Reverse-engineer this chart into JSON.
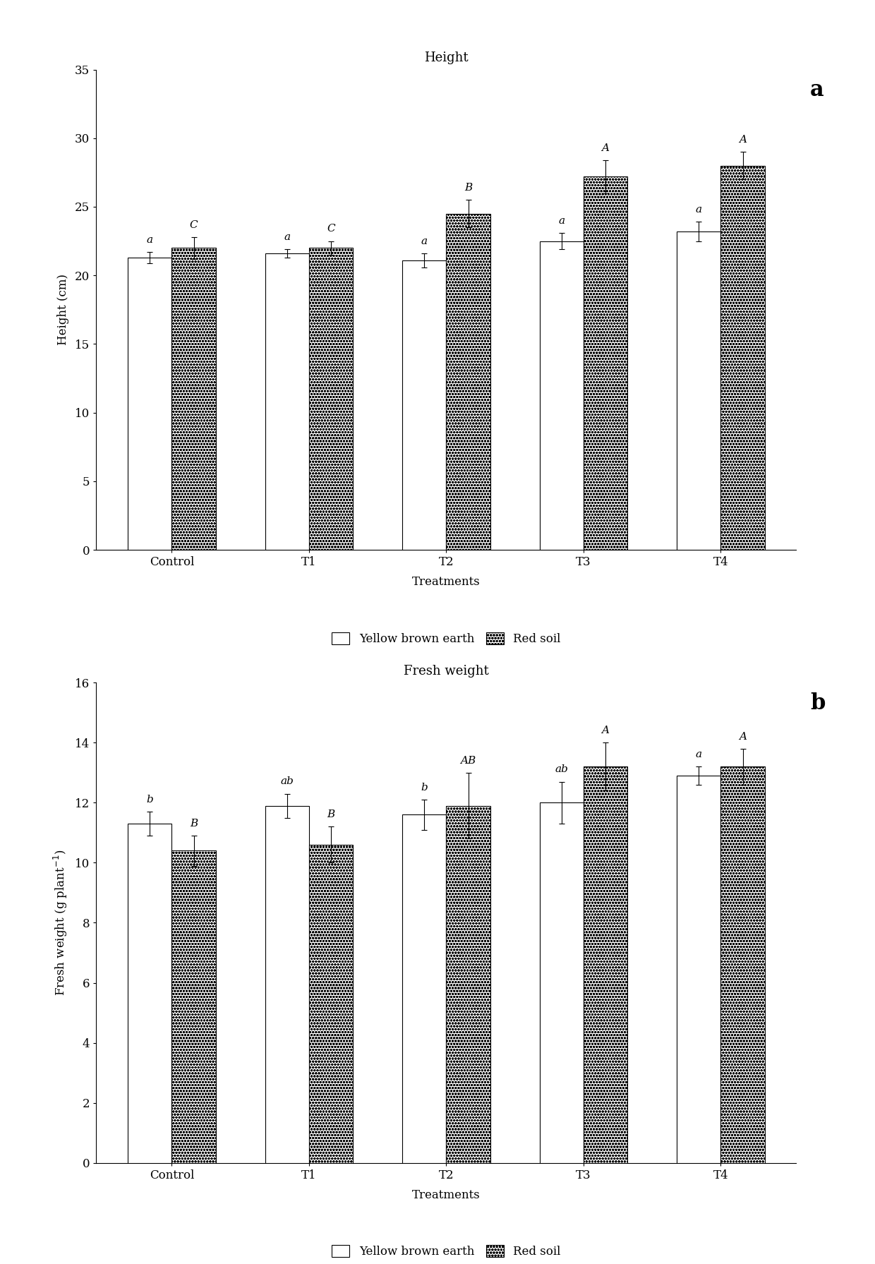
{
  "chart_a": {
    "title": "Height",
    "panel_label": "a",
    "ylabel": "Height (cm)",
    "xlabel": "Treatments",
    "ylim": [
      0,
      35
    ],
    "yticks": [
      0,
      5,
      10,
      15,
      20,
      25,
      30,
      35
    ],
    "categories": [
      "Control",
      "T1",
      "T2",
      "T3",
      "T4"
    ],
    "white_bars": [
      21.3,
      21.6,
      21.1,
      22.5,
      23.2
    ],
    "white_errors": [
      0.4,
      0.3,
      0.5,
      0.6,
      0.7
    ],
    "dotted_bars": [
      22.0,
      22.0,
      24.5,
      27.2,
      28.0
    ],
    "dotted_errors": [
      0.8,
      0.5,
      1.0,
      1.2,
      1.0
    ],
    "white_labels": [
      "a",
      "a",
      "a",
      "a",
      "a"
    ],
    "dotted_labels": [
      "C",
      "C",
      "B",
      "A",
      "A"
    ]
  },
  "chart_b": {
    "title": "Fresh weight",
    "panel_label": "b",
    "ylabel": "Fresh weight (g plant)",
    "xlabel": "Treatments",
    "ylim": [
      0,
      16
    ],
    "yticks": [
      0,
      2,
      4,
      6,
      8,
      10,
      12,
      14,
      16
    ],
    "categories": [
      "Control",
      "T1",
      "T2",
      "T3",
      "T4"
    ],
    "white_bars": [
      11.3,
      11.9,
      11.6,
      12.0,
      12.9
    ],
    "white_errors": [
      0.4,
      0.4,
      0.5,
      0.7,
      0.3
    ],
    "dotted_bars": [
      10.4,
      10.6,
      11.9,
      13.2,
      13.2
    ],
    "dotted_errors": [
      0.5,
      0.6,
      1.1,
      0.8,
      0.6
    ],
    "white_labels": [
      "b",
      "ab",
      "b",
      "ab",
      "a"
    ],
    "dotted_labels": [
      "B",
      "B",
      "AB",
      "A",
      "A"
    ]
  },
  "legend_labels": [
    "Yellow brown earth",
    "Red soil"
  ],
  "bar_width": 0.32,
  "background_color": "#ffffff"
}
